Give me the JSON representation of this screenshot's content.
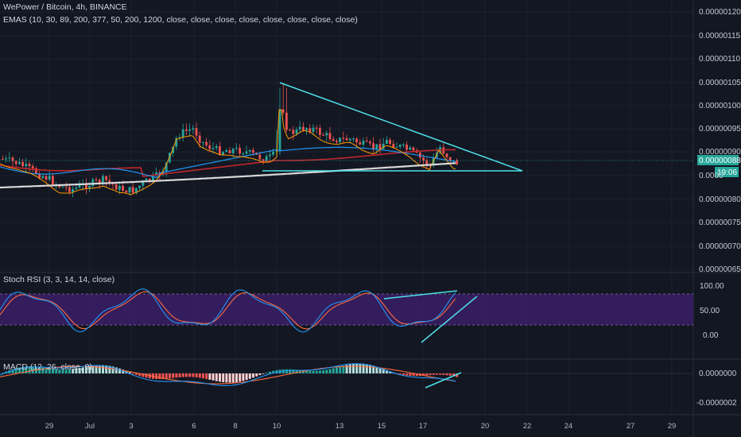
{
  "header": {
    "symbol": "WePower / Bitcoin, 4h, BINANCE",
    "emas": "EMAS (10, 30, 89, 200, 377, 50, 200, 1200, close, close, close, close, close, close, close, close)"
  },
  "price_axis": {
    "labels": [
      "0.00000120",
      "0.00000115",
      "0.00000110",
      "0.00000105",
      "0.00000100",
      "0.00000095",
      "0.00000090",
      "0.00000085",
      "0.00000080",
      "0.00000075",
      "0.00000070",
      "0.00000065"
    ],
    "last_price": "0.00000088",
    "countdown": "19:06",
    "partial_label": "0.0000"
  },
  "stoch_rsi": {
    "title": "Stoch RSI (3, 3, 14, 14, close)",
    "labels": [
      "100.00",
      "50.00",
      "0.00"
    ]
  },
  "macd": {
    "title": "MACD (12, 26, close, 9)",
    "labels": [
      "0.0000000",
      "-0.0000002"
    ]
  },
  "time_axis": {
    "labels": [
      "29",
      "Jul",
      "3",
      "6",
      "8",
      "10",
      "13",
      "15",
      "17",
      "20",
      "22",
      "24",
      "27",
      "29"
    ]
  },
  "colors": {
    "background": "#131722",
    "up_candle": "#26a69a",
    "down_candle": "#ef5350",
    "trendline": "#4ee0e8",
    "stoch_band": "#3b1f66",
    "k_line": "#2196f3",
    "d_line": "#ff6b3d"
  }
}
